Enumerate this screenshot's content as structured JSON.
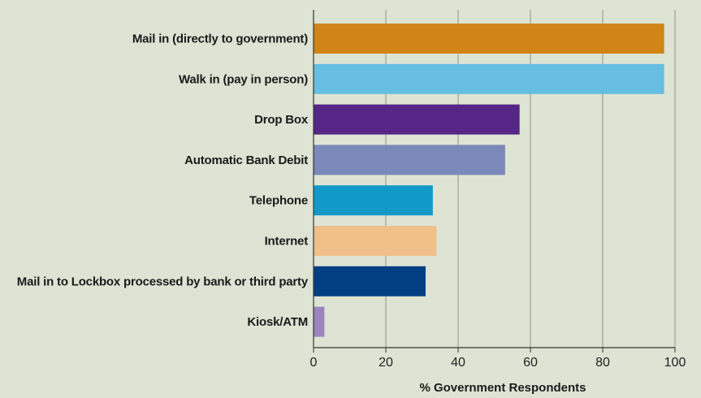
{
  "chart_data": {
    "type": "bar",
    "orientation": "horizontal",
    "title": "",
    "xlabel": "% Government Respondents",
    "ylabel": "",
    "xlim": [
      0,
      100
    ],
    "xticks": [
      0,
      20,
      40,
      60,
      80,
      100
    ],
    "grid": "vertical",
    "background_color": "#dde4d4",
    "categories": [
      "Mail in (directly to government)",
      "Walk in (pay in person)",
      "Drop Box",
      "Automatic Bank Debit",
      "Telephone",
      "Internet",
      "Mail in to Lockbox processed by bank or third party",
      "Kiosk/ATM"
    ],
    "values": [
      97,
      97,
      57,
      53,
      33,
      34,
      31,
      3
    ],
    "colors": [
      "#d08516",
      "#66bfe2",
      "#552685",
      "#7b88ba",
      "#1199c8",
      "#f0c088",
      "#033f83",
      "#9c85be"
    ]
  }
}
